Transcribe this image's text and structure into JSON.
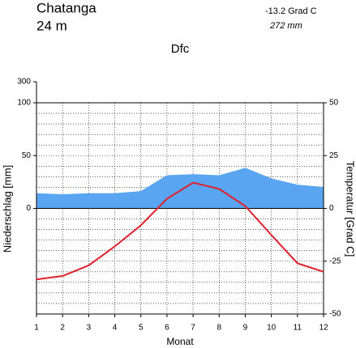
{
  "chart_data": {
    "type": "climate",
    "title": "Chatanga",
    "subtitle": "24  m",
    "annotations": [
      "-13.2 Grad C",
      "272 mm"
    ],
    "climate_class": "Dfc",
    "xlabel": "Monat",
    "ylabel": "Niederschlag [mm]",
    "y2label": "Temperatur [Grad C]",
    "x": [
      1,
      2,
      3,
      4,
      5,
      6,
      7,
      8,
      9,
      10,
      11,
      12
    ],
    "xlim": [
      1,
      12
    ],
    "xticks": [
      1,
      2,
      3,
      4,
      5,
      6,
      7,
      8,
      9,
      10,
      11,
      12
    ],
    "ylim": [
      -100,
      300
    ],
    "yticks": [
      0,
      50,
      100,
      300
    ],
    "y2lim": [
      -50,
      50
    ],
    "y2ticks": [
      -50,
      -25,
      0,
      25,
      50
    ],
    "grid": true,
    "series": [
      {
        "name": "Niederschlag",
        "color": "#5aa5f2",
        "values": [
          14,
          13,
          14,
          14,
          16,
          31,
          32,
          31,
          38,
          28,
          22,
          20
        ]
      },
      {
        "name": "Temperatur",
        "color": "#e0202a",
        "axis": "y2",
        "values": [
          -33.6,
          -32,
          -27,
          -18,
          -8,
          4.6,
          12.2,
          9.2,
          1.1,
          -12.6,
          -26,
          -30
        ]
      }
    ]
  }
}
